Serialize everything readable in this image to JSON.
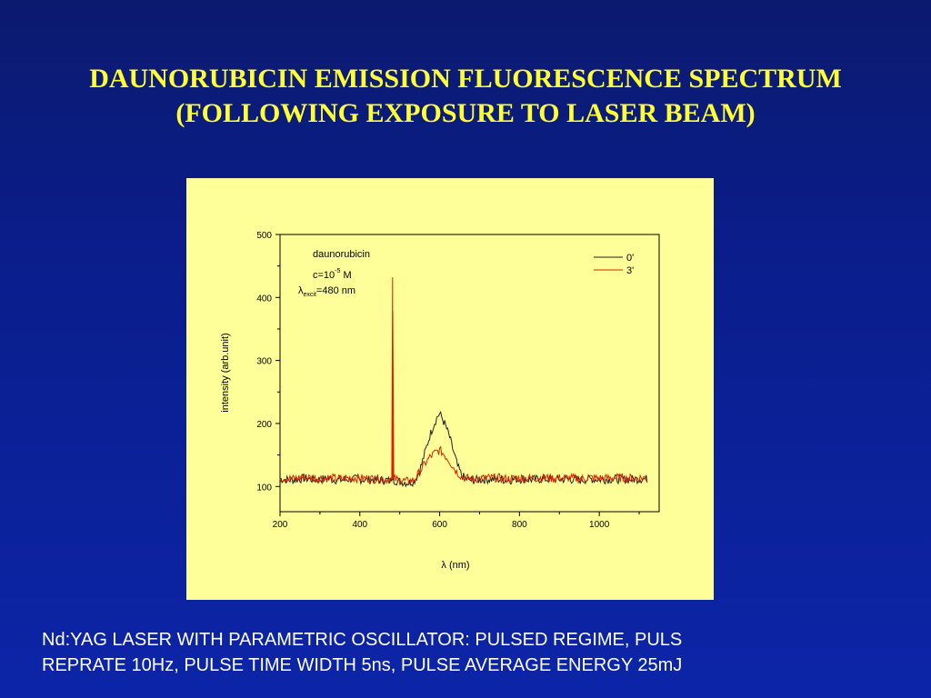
{
  "slide": {
    "title_line1": "DAUNORUBICIN EMISSION FLUORESCENCE SPECTRUM",
    "title_line2": "(FOLLOWING EXPOSURE TO LASER BEAM)",
    "footer_line1": "Nd:YAG LASER WITH PARAMETRIC OSCILLATOR: PULSED REGIME, PULS",
    "footer_line2": "REPRATE 10Hz, PULSE TIME WIDTH  5ns, PULSE AVERAGE ENERGY  25mJ"
  },
  "colors": {
    "background": "#0a1d8a",
    "title": "#ffff33",
    "panel": "#ffff99",
    "series_0": "#222222",
    "series_3": "#dd2200"
  },
  "chart_data": {
    "type": "line",
    "xlabel": "λ (nm)",
    "ylabel": "intensity (arb.unit)",
    "xlim": [
      200,
      1150
    ],
    "ylim": [
      60,
      500
    ],
    "xticks": [
      200,
      400,
      600,
      800,
      1000
    ],
    "yticks": [
      100,
      200,
      300,
      400,
      500
    ],
    "grid": false,
    "legend_position": "top-right",
    "annotation": {
      "line1": "daunorubicin",
      "line2_base": "c=10",
      "line2_sup": "-5",
      "line2_unit": " M",
      "line3_lambda": "λ",
      "line3_sub": "excit",
      "line3_rest": "=480 nm"
    },
    "series": [
      {
        "name": "0'",
        "color": "#222222",
        "points": [
          [
            200,
            112
          ],
          [
            230,
            110
          ],
          [
            260,
            113
          ],
          [
            290,
            111
          ],
          [
            320,
            112
          ],
          [
            350,
            110
          ],
          [
            380,
            112
          ],
          [
            410,
            111
          ],
          [
            440,
            110
          ],
          [
            470,
            110
          ],
          [
            480,
            108
          ],
          [
            482,
            270
          ],
          [
            485,
            110
          ],
          [
            500,
            108
          ],
          [
            520,
            106
          ],
          [
            535,
            108
          ],
          [
            545,
            118
          ],
          [
            555,
            135
          ],
          [
            565,
            158
          ],
          [
            575,
            180
          ],
          [
            585,
            198
          ],
          [
            595,
            212
          ],
          [
            600,
            215
          ],
          [
            605,
            210
          ],
          [
            615,
            196
          ],
          [
            625,
            178
          ],
          [
            635,
            155
          ],
          [
            645,
            132
          ],
          [
            655,
            118
          ],
          [
            665,
            112
          ],
          [
            680,
            110
          ],
          [
            710,
            111
          ],
          [
            740,
            112
          ],
          [
            770,
            110
          ],
          [
            800,
            112
          ],
          [
            830,
            111
          ],
          [
            860,
            112
          ],
          [
            890,
            111
          ],
          [
            920,
            112
          ],
          [
            950,
            110
          ],
          [
            980,
            112
          ],
          [
            1010,
            111
          ],
          [
            1040,
            112
          ],
          [
            1070,
            111
          ],
          [
            1100,
            112
          ],
          [
            1120,
            112
          ]
        ]
      },
      {
        "name": "3'",
        "color": "#dd2200",
        "points": [
          [
            200,
            114
          ],
          [
            230,
            112
          ],
          [
            260,
            115
          ],
          [
            290,
            113
          ],
          [
            320,
            114
          ],
          [
            350,
            112
          ],
          [
            380,
            114
          ],
          [
            410,
            113
          ],
          [
            440,
            112
          ],
          [
            470,
            112
          ],
          [
            480,
            110
          ],
          [
            482,
            432
          ],
          [
            485,
            112
          ],
          [
            500,
            110
          ],
          [
            520,
            108
          ],
          [
            535,
            110
          ],
          [
            545,
            118
          ],
          [
            555,
            128
          ],
          [
            565,
            138
          ],
          [
            575,
            146
          ],
          [
            585,
            152
          ],
          [
            595,
            156
          ],
          [
            600,
            157
          ],
          [
            605,
            155
          ],
          [
            615,
            148
          ],
          [
            625,
            140
          ],
          [
            635,
            130
          ],
          [
            645,
            122
          ],
          [
            655,
            116
          ],
          [
            665,
            113
          ],
          [
            680,
            112
          ],
          [
            710,
            113
          ],
          [
            740,
            114
          ],
          [
            770,
            112
          ],
          [
            800,
            114
          ],
          [
            830,
            113
          ],
          [
            860,
            114
          ],
          [
            890,
            113
          ],
          [
            920,
            114
          ],
          [
            950,
            112
          ],
          [
            980,
            114
          ],
          [
            1010,
            113
          ],
          [
            1040,
            114
          ],
          [
            1070,
            113
          ],
          [
            1100,
            114
          ],
          [
            1120,
            113
          ]
        ]
      }
    ]
  }
}
